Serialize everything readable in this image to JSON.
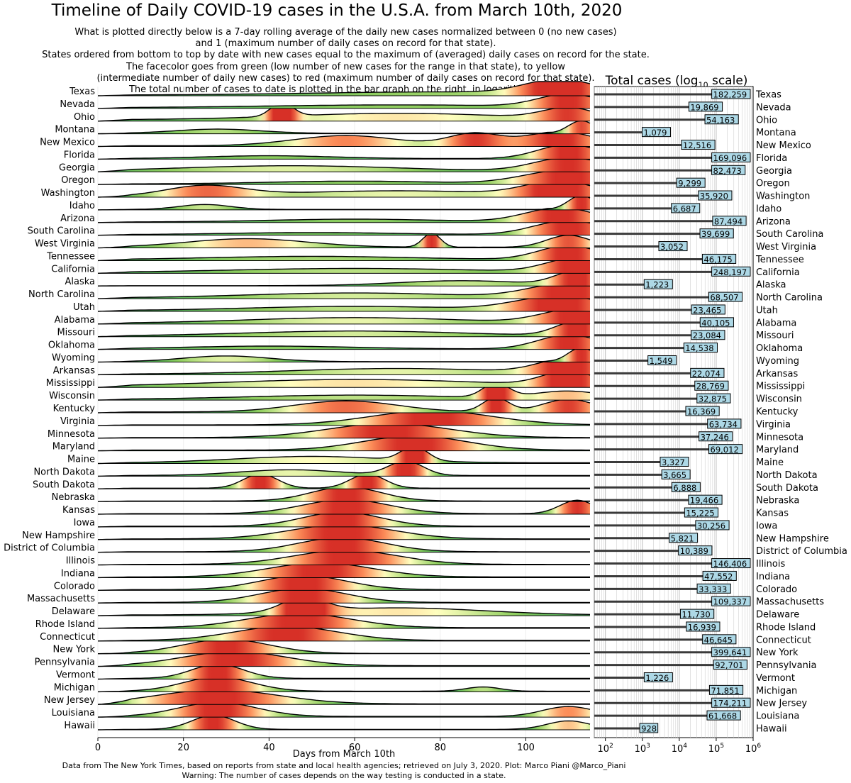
{
  "title": "Timeline of Daily COVID-19 cases in the U.S.A. from March 10th, 2020",
  "subtitle_lines": [
    "What is plotted directly below is a 7-day rolling average of the daily new cases normalized between 0 (no new cases)",
    "and 1 (maximum number of daily cases on record for that state).",
    "States ordered from bottom to top by date with new cases equal to the maximum of (averaged) daily cases on record for the state.",
    "The facecolor goes from green (low number of new cases for the range in that state), to yellow",
    "(intermediate number of daily new cases) to red (maximum number of daily cases on record for that state).",
    "The total number of cases to date is plotted in the bar graph on the right, in logarithmic scale"
  ],
  "footer_lines": [
    "Data from The New York Times, based on reports from state and local health agencies; retrieved on July 3, 2020. Plot: Marco Piani @Marco_Piani",
    "Warning: The number of cases depends on the way testing is conducted in a state."
  ],
  "bar_title": {
    "main": "Total cases (log",
    "sub": "10",
    "end": " scale)"
  },
  "colors": {
    "low": "#1a9850",
    "mid": "#ffffbf",
    "high": "#d73027",
    "bar": "#3a3a3a",
    "value_box": "#add8e6",
    "grid": "#d0d0d0"
  },
  "chart_data": [
    {
      "type": "ridgeline",
      "xlabel": "Days from March 10th",
      "xlim": [
        0,
        115
      ],
      "xticks": [
        0,
        20,
        40,
        60,
        80,
        100
      ],
      "x_tick_labels": [
        "0",
        "20",
        "40",
        "60",
        "80",
        "100"
      ],
      "ylim": [
        0,
        1
      ],
      "series": [
        {
          "name": "Texas",
          "peaks": [
            [
              108,
              1.0,
              8
            ],
            [
              80,
              0.22,
              30
            ]
          ],
          "base": 0.05
        },
        {
          "name": "Nevada",
          "peaks": [
            [
              110,
              0.9,
              7
            ],
            [
              70,
              0.2,
              30
            ]
          ],
          "base": 0.05
        },
        {
          "name": "Ohio",
          "peaks": [
            [
              43,
              1.0,
              2.5
            ],
            [
              110,
              0.75,
              6
            ],
            [
              70,
              0.45,
              25
            ]
          ],
          "base": 0.1
        },
        {
          "name": "Montana",
          "peaks": [
            [
              113,
              0.9,
              3
            ],
            [
              28,
              0.3,
              10
            ]
          ],
          "base": 0.03
        },
        {
          "name": "New Mexico",
          "peaks": [
            [
              108,
              1.0,
              8
            ],
            [
              58,
              0.72,
              12
            ],
            [
              88,
              0.85,
              6
            ]
          ],
          "base": 0.05
        },
        {
          "name": "Florida",
          "peaks": [
            [
              110,
              1.0,
              7
            ],
            [
              40,
              0.2,
              15
            ]
          ],
          "base": 0.04
        },
        {
          "name": "Georgia",
          "peaks": [
            [
              110,
              0.95,
              8
            ],
            [
              45,
              0.38,
              25
            ]
          ],
          "base": 0.05
        },
        {
          "name": "Oregon",
          "peaks": [
            [
              110,
              1.0,
              10
            ],
            [
              60,
              0.2,
              20
            ]
          ],
          "base": 0.04
        },
        {
          "name": "Washington",
          "peaks": [
            [
              25,
              0.72,
              9
            ],
            [
              108,
              1.0,
              8
            ],
            [
              70,
              0.4,
              25
            ]
          ],
          "base": 0.05
        },
        {
          "name": "Idaho",
          "peaks": [
            [
              113,
              1.0,
              3
            ],
            [
              25,
              0.35,
              6
            ]
          ],
          "base": 0.03
        },
        {
          "name": "Arizona",
          "peaks": [
            [
              108,
              1.0,
              8
            ],
            [
              60,
              0.2,
              20
            ]
          ],
          "base": 0.04
        },
        {
          "name": "South Carolina",
          "peaks": [
            [
              110,
              1.0,
              8
            ],
            [
              50,
              0.15,
              20
            ]
          ],
          "base": 0.04
        },
        {
          "name": "West Virginia",
          "peaks": [
            [
              78,
              1.0,
              2
            ],
            [
              35,
              0.6,
              14
            ],
            [
              110,
              0.85,
              5
            ]
          ],
          "base": 0.05
        },
        {
          "name": "Tennessee",
          "peaks": [
            [
              110,
              1.0,
              7
            ],
            [
              50,
              0.25,
              25
            ]
          ],
          "base": 0.05
        },
        {
          "name": "California",
          "peaks": [
            [
              112,
              1.0,
              7
            ],
            [
              60,
              0.3,
              30
            ]
          ],
          "base": 0.04
        },
        {
          "name": "Alaska",
          "peaks": [
            [
              112,
              1.0,
              5
            ],
            [
              85,
              0.35,
              15
            ]
          ],
          "base": 0.02
        },
        {
          "name": "North Carolina",
          "peaks": [
            [
              110,
              1.0,
              9
            ],
            [
              60,
              0.35,
              25
            ]
          ],
          "base": 0.05
        },
        {
          "name": "Utah",
          "peaks": [
            [
              108,
              1.0,
              10
            ],
            [
              60,
              0.3,
              25
            ]
          ],
          "base": 0.05
        },
        {
          "name": "Alabama",
          "peaks": [
            [
              112,
              1.0,
              8
            ],
            [
              60,
              0.4,
              25
            ]
          ],
          "base": 0.05
        },
        {
          "name": "Missouri",
          "peaks": [
            [
              112,
              1.0,
              5
            ],
            [
              60,
              0.35,
              25
            ]
          ],
          "base": 0.05
        },
        {
          "name": "Oklahoma",
          "peaks": [
            [
              110,
              1.0,
              7
            ],
            [
              40,
              0.2,
              20
            ]
          ],
          "base": 0.03
        },
        {
          "name": "Wyoming",
          "peaks": [
            [
              113,
              1.0,
              3
            ],
            [
              30,
              0.4,
              10
            ]
          ],
          "base": 0.03
        },
        {
          "name": "Arkansas",
          "peaks": [
            [
              110,
              1.0,
              7
            ],
            [
              70,
              0.4,
              25
            ]
          ],
          "base": 0.04
        },
        {
          "name": "Mississippi",
          "peaks": [
            [
              110,
              1.0,
              6
            ],
            [
              60,
              0.5,
              30
            ]
          ],
          "base": 0.06
        },
        {
          "name": "Wisconsin",
          "peaks": [
            [
              93,
              1.0,
              3
            ],
            [
              110,
              0.55,
              8
            ],
            [
              60,
              0.3,
              25
            ]
          ],
          "base": 0.05
        },
        {
          "name": "Kentucky",
          "peaks": [
            [
              93,
              1.0,
              3
            ],
            [
              58,
              0.78,
              12
            ],
            [
              110,
              0.9,
              6
            ]
          ],
          "base": 0.06
        },
        {
          "name": "Virginia",
          "peaks": [
            [
              78,
              1.0,
              14
            ]
          ],
          "base": 0.04
        },
        {
          "name": "Minnesota",
          "peaks": [
            [
              68,
              1.0,
              14
            ]
          ],
          "base": 0.04
        },
        {
          "name": "Maryland",
          "peaks": [
            [
              74,
              1.0,
              12
            ]
          ],
          "base": 0.05
        },
        {
          "name": "Maine",
          "peaks": [
            [
              74,
              1.0,
              3
            ],
            [
              50,
              0.45,
              18
            ]
          ],
          "base": 0.05
        },
        {
          "name": "North Dakota",
          "peaks": [
            [
              72,
              1.0,
              4
            ],
            [
              45,
              0.4,
              12
            ]
          ],
          "base": 0.05
        },
        {
          "name": "South Dakota",
          "peaks": [
            [
              38,
              1.0,
              4
            ],
            [
              63,
              1.0,
              4
            ]
          ],
          "base": 0.05
        },
        {
          "name": "Nebraska",
          "peaks": [
            [
              58,
              1.0,
              8
            ]
          ],
          "base": 0.04
        },
        {
          "name": "Kansas",
          "peaks": [
            [
              58,
              1.0,
              10
            ],
            [
              112,
              0.95,
              4
            ]
          ],
          "base": 0.04
        },
        {
          "name": "Iowa",
          "peaks": [
            [
              57,
              1.0,
              9
            ]
          ],
          "base": 0.05
        },
        {
          "name": "New Hampshire",
          "peaks": [
            [
              57,
              1.0,
              12
            ]
          ],
          "base": 0.05
        },
        {
          "name": "District of Columbia",
          "peaks": [
            [
              57,
              1.0,
              10
            ]
          ],
          "base": 0.04
        },
        {
          "name": "Illinois",
          "peaks": [
            [
              58,
              1.0,
              12
            ]
          ],
          "base": 0.04
        },
        {
          "name": "Indiana",
          "peaks": [
            [
              52,
              1.0,
              12
            ]
          ],
          "base": 0.05
        },
        {
          "name": "Colorado",
          "peaks": [
            [
              48,
              1.0,
              10
            ]
          ],
          "base": 0.05
        },
        {
          "name": "Massachusetts",
          "peaks": [
            [
              48,
              1.0,
              10
            ]
          ],
          "base": 0.04
        },
        {
          "name": "Delaware",
          "peaks": [
            [
              48,
              1.0,
              5
            ],
            [
              70,
              0.5,
              20
            ]
          ],
          "base": 0.05
        },
        {
          "name": "Rhode Island",
          "peaks": [
            [
              47,
              1.0,
              12
            ]
          ],
          "base": 0.05
        },
        {
          "name": "Connecticut",
          "peaks": [
            [
              44,
              1.0,
              12
            ]
          ],
          "base": 0.04
        },
        {
          "name": "New York",
          "peaks": [
            [
              30,
              1.0,
              10
            ]
          ],
          "base": 0.02
        },
        {
          "name": "Pennsylvania",
          "peaks": [
            [
              32,
              1.0,
              12
            ]
          ],
          "base": 0.05
        },
        {
          "name": "Vermont",
          "peaks": [
            [
              28,
              1.0,
              6
            ]
          ],
          "base": 0.05
        },
        {
          "name": "Michigan",
          "peaks": [
            [
              28,
              1.0,
              8
            ],
            [
              90,
              0.3,
              4
            ]
          ],
          "base": 0.04
        },
        {
          "name": "New Jersey",
          "peaks": [
            [
              28,
              1.0,
              14
            ]
          ],
          "base": 0.04
        },
        {
          "name": "Louisiana",
          "peaks": [
            [
              28,
              1.0,
              9
            ],
            [
              110,
              0.7,
              6
            ]
          ],
          "base": 0.05
        },
        {
          "name": "Hawaii",
          "peaks": [
            [
              27,
              1.0,
              5
            ],
            [
              110,
              0.6,
              5
            ]
          ],
          "base": 0.03
        }
      ]
    },
    {
      "type": "bar",
      "orientation": "horizontal",
      "title": "Total cases (log10 scale)",
      "xscale": "log",
      "xlim": [
        50,
        1000000
      ],
      "xticks": [
        100,
        1000,
        10000,
        100000,
        1000000
      ],
      "x_tick_labels": [
        [
          "10",
          "2"
        ],
        [
          "10",
          "3"
        ],
        [
          "10",
          "4"
        ],
        [
          "10",
          "5"
        ],
        [
          "10",
          "6"
        ]
      ],
      "categories": [
        "Texas",
        "Nevada",
        "Ohio",
        "Montana",
        "New Mexico",
        "Florida",
        "Georgia",
        "Oregon",
        "Washington",
        "Idaho",
        "Arizona",
        "South Carolina",
        "West Virginia",
        "Tennessee",
        "California",
        "Alaska",
        "North Carolina",
        "Utah",
        "Alabama",
        "Missouri",
        "Oklahoma",
        "Wyoming",
        "Arkansas",
        "Mississippi",
        "Wisconsin",
        "Kentucky",
        "Virginia",
        "Minnesota",
        "Maryland",
        "Maine",
        "North Dakota",
        "South Dakota",
        "Nebraska",
        "Kansas",
        "Iowa",
        "New Hampshire",
        "District of Columbia",
        "Illinois",
        "Indiana",
        "Colorado",
        "Massachusetts",
        "Delaware",
        "Rhode Island",
        "Connecticut",
        "New York",
        "Pennsylvania",
        "Vermont",
        "Michigan",
        "New Jersey",
        "Louisiana",
        "Hawaii"
      ],
      "values": [
        182259,
        19869,
        54163,
        1079,
        12516,
        169096,
        82473,
        9299,
        35920,
        6687,
        87494,
        39699,
        3052,
        46175,
        248197,
        1223,
        68507,
        23465,
        40105,
        23084,
        14538,
        1549,
        22074,
        28769,
        32875,
        16369,
        63734,
        37246,
        69012,
        3327,
        3665,
        6888,
        19466,
        15225,
        30256,
        5821,
        10389,
        146406,
        47552,
        33333,
        109337,
        11730,
        16939,
        46645,
        399641,
        92701,
        1226,
        71851,
        174211,
        61668,
        928
      ],
      "value_labels": [
        "182,259",
        "19,869",
        "54,163",
        "1,079",
        "12,516",
        "169,096",
        "82,473",
        "9,299",
        "35,920",
        "6,687",
        "87,494",
        "39,699",
        "3,052",
        "46,175",
        "248,197",
        "1,223",
        "68,507",
        "23,465",
        "40,105",
        "23,084",
        "14,538",
        "1,549",
        "22,074",
        "28,769",
        "32,875",
        "16,369",
        "63,734",
        "37,246",
        "69,012",
        "3,327",
        "3,665",
        "6,888",
        "19,466",
        "15,225",
        "30,256",
        "5,821",
        "10,389",
        "146,406",
        "47,552",
        "33,333",
        "109,337",
        "11,730",
        "16,939",
        "46,645",
        "399,641",
        "92,701",
        "1,226",
        "71,851",
        "174,211",
        "61,668",
        "928"
      ]
    }
  ]
}
